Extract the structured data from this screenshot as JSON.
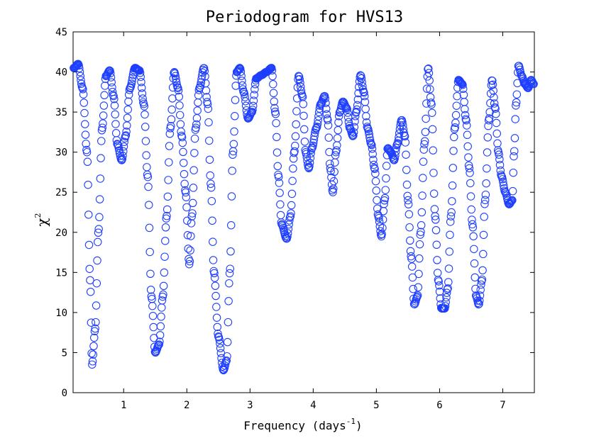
{
  "chart_data": {
    "type": "scatter",
    "title": "Periodogram for HVS13",
    "xlabel": "Frequency (days",
    "xlabel_sup": "-1",
    "xlabel_close": ")",
    "ylabel": "χ",
    "ylabel_sup": "2",
    "xlim": [
      0.2,
      7.5
    ],
    "ylim": [
      0,
      45
    ],
    "xticks": [
      1,
      2,
      3,
      4,
      5,
      6,
      7
    ],
    "yticks": [
      0,
      5,
      10,
      15,
      20,
      25,
      30,
      35,
      40,
      45
    ],
    "marker": "open-circle",
    "color": "#1f3fff",
    "series": [
      {
        "name": "chi2",
        "anchors": [
          [
            0.21,
            40.5
          ],
          [
            0.28,
            41.0
          ],
          [
            0.35,
            38.0
          ],
          [
            0.42,
            30.0
          ],
          [
            0.47,
            14.0
          ],
          [
            0.5,
            3.5
          ],
          [
            0.55,
            8.0
          ],
          [
            0.6,
            20.0
          ],
          [
            0.66,
            33.0
          ],
          [
            0.72,
            39.5
          ],
          [
            0.78,
            40.2
          ],
          [
            0.84,
            37.0
          ],
          [
            0.9,
            31.0
          ],
          [
            0.97,
            29.0
          ],
          [
            1.03,
            32.0
          ],
          [
            1.1,
            38.0
          ],
          [
            1.18,
            40.5
          ],
          [
            1.25,
            40.2
          ],
          [
            1.32,
            36.0
          ],
          [
            1.38,
            27.0
          ],
          [
            1.44,
            12.0
          ],
          [
            1.5,
            5.0
          ],
          [
            1.56,
            6.0
          ],
          [
            1.62,
            12.0
          ],
          [
            1.68,
            22.0
          ],
          [
            1.74,
            33.0
          ],
          [
            1.8,
            40.0
          ],
          [
            1.86,
            38.0
          ],
          [
            1.92,
            32.0
          ],
          [
            1.98,
            25.0
          ],
          [
            2.04,
            16.0
          ],
          [
            2.08,
            22.0
          ],
          [
            2.14,
            33.0
          ],
          [
            2.2,
            38.0
          ],
          [
            2.27,
            40.5
          ],
          [
            2.33,
            36.0
          ],
          [
            2.38,
            26.0
          ],
          [
            2.43,
            15.0
          ],
          [
            2.5,
            7.0
          ],
          [
            2.58,
            2.8
          ],
          [
            2.63,
            4.0
          ],
          [
            2.68,
            15.0
          ],
          [
            2.73,
            30.0
          ],
          [
            2.79,
            40.0
          ],
          [
            2.84,
            40.5
          ],
          [
            2.9,
            37.5
          ],
          [
            2.97,
            34.2
          ],
          [
            3.03,
            35.0
          ],
          [
            3.1,
            39.2
          ],
          [
            3.18,
            39.6
          ],
          [
            3.26,
            40.0
          ],
          [
            3.34,
            40.5
          ],
          [
            3.4,
            35.0
          ],
          [
            3.45,
            27.0
          ],
          [
            3.5,
            21.0
          ],
          [
            3.58,
            19.2
          ],
          [
            3.64,
            22.0
          ],
          [
            3.7,
            30.0
          ],
          [
            3.77,
            39.5
          ],
          [
            3.83,
            37.0
          ],
          [
            3.88,
            30.0
          ],
          [
            3.93,
            28.0
          ],
          [
            3.98,
            30.5
          ],
          [
            4.05,
            33.0
          ],
          [
            4.12,
            36.0
          ],
          [
            4.18,
            37.0
          ],
          [
            4.23,
            34.0
          ],
          [
            4.27,
            28.0
          ],
          [
            4.31,
            25.0
          ],
          [
            4.36,
            30.0
          ],
          [
            4.42,
            35.0
          ],
          [
            4.47,
            36.3
          ],
          [
            4.53,
            35.5
          ],
          [
            4.58,
            33.0
          ],
          [
            4.63,
            32.0
          ],
          [
            4.68,
            35.0
          ],
          [
            4.75,
            39.6
          ],
          [
            4.8,
            37.5
          ],
          [
            4.86,
            33.0
          ],
          [
            4.92,
            31.0
          ],
          [
            4.97,
            28.0
          ],
          [
            5.03,
            22.0
          ],
          [
            5.08,
            19.5
          ],
          [
            5.13,
            24.0
          ],
          [
            5.18,
            30.5
          ],
          [
            5.23,
            30.0
          ],
          [
            5.28,
            29.0
          ],
          [
            5.33,
            31.0
          ],
          [
            5.4,
            34.0
          ],
          [
            5.45,
            32.0
          ],
          [
            5.5,
            24.0
          ],
          [
            5.55,
            17.0
          ],
          [
            5.6,
            11.0
          ],
          [
            5.65,
            12.0
          ],
          [
            5.7,
            20.0
          ],
          [
            5.76,
            31.0
          ],
          [
            5.82,
            40.5
          ],
          [
            5.87,
            36.0
          ],
          [
            5.93,
            22.0
          ],
          [
            5.98,
            14.0
          ],
          [
            6.03,
            10.5
          ],
          [
            6.08,
            10.5
          ],
          [
            6.13,
            13.0
          ],
          [
            6.18,
            22.0
          ],
          [
            6.24,
            33.0
          ],
          [
            6.3,
            39.0
          ],
          [
            6.36,
            38.5
          ],
          [
            6.42,
            34.0
          ],
          [
            6.47,
            28.0
          ],
          [
            6.52,
            21.0
          ],
          [
            6.58,
            12.0
          ],
          [
            6.62,
            11.0
          ],
          [
            6.67,
            14.0
          ],
          [
            6.72,
            24.0
          ],
          [
            6.78,
            34.0
          ],
          [
            6.83,
            39.0
          ],
          [
            6.88,
            35.5
          ],
          [
            6.93,
            30.0
          ],
          [
            6.98,
            27.0
          ],
          [
            7.04,
            25.0
          ],
          [
            7.1,
            23.5
          ],
          [
            7.15,
            24.0
          ],
          [
            7.18,
            30.0
          ],
          [
            7.21,
            36.0
          ],
          [
            7.25,
            40.8
          ],
          [
            7.3,
            39.5
          ],
          [
            7.35,
            38.5
          ],
          [
            7.4,
            38.0
          ],
          [
            7.45,
            39.0
          ],
          [
            7.49,
            38.5
          ]
        ]
      }
    ]
  }
}
